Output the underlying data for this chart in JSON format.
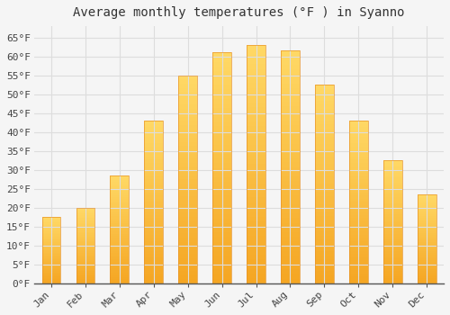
{
  "title": "Average monthly temperatures (°F ) in Syanno",
  "months": [
    "Jan",
    "Feb",
    "Mar",
    "Apr",
    "May",
    "Jun",
    "Jul",
    "Aug",
    "Sep",
    "Oct",
    "Nov",
    "Dec"
  ],
  "values": [
    17.5,
    20.0,
    28.5,
    43.0,
    55.0,
    61.0,
    63.0,
    61.5,
    52.5,
    43.0,
    32.5,
    23.5
  ],
  "bar_color_bottom": "#F5A623",
  "bar_color_top": "#FFD966",
  "bar_edge_color": "#E8952A",
  "background_color": "#F5F5F5",
  "plot_bg_color": "#F0F0F0",
  "grid_color": "#DDDDDD",
  "ylim": [
    0,
    68
  ],
  "yticks": [
    0,
    5,
    10,
    15,
    20,
    25,
    30,
    35,
    40,
    45,
    50,
    55,
    60,
    65
  ],
  "title_fontsize": 10,
  "tick_fontsize": 8,
  "bar_width": 0.55
}
